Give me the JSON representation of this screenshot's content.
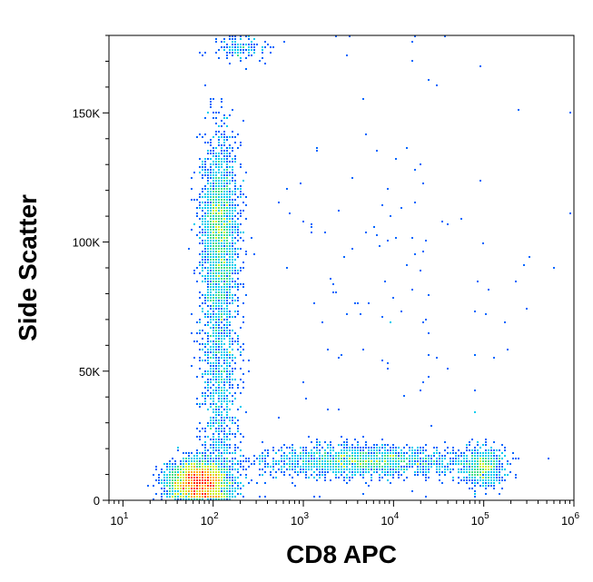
{
  "chart_data": {
    "type": "scatter",
    "subtype": "flow-cytometry density dot plot",
    "xlabel": "CD8 APC",
    "ylabel": "Side Scatter",
    "x_scale": "log",
    "x_range": [
      7,
      1000000
    ],
    "y_scale": "linear",
    "y_range": [
      0,
      180000
    ],
    "x_ticks": [
      {
        "value": 10,
        "base": "10",
        "exp": "1"
      },
      {
        "value": 100,
        "base": "10",
        "exp": "2"
      },
      {
        "value": 1000,
        "base": "10",
        "exp": "3"
      },
      {
        "value": 10000,
        "base": "10",
        "exp": "4"
      },
      {
        "value": 100000,
        "base": "10",
        "exp": "5"
      },
      {
        "value": 1000000,
        "base": "10",
        "exp": "6"
      }
    ],
    "y_ticks": [
      {
        "value": 0,
        "label": "0"
      },
      {
        "value": 50000,
        "label": "50K"
      },
      {
        "value": 100000,
        "label": "100K"
      },
      {
        "value": 150000,
        "label": "150K"
      }
    ],
    "color_scale": [
      "#0000cc",
      "#0066ff",
      "#00ccee",
      "#44dd88",
      "#ccee22",
      "#ffaa00",
      "#ff2200"
    ],
    "grid": false,
    "legend": "none",
    "populations": [
      {
        "x": 70,
        "y": 7000,
        "sx_log": 0.16,
        "sy": 4000,
        "n": 4000
      },
      {
        "x": 120,
        "y": 105000,
        "sx_log": 0.1,
        "sy": 18000,
        "n": 2200
      },
      {
        "x": 120,
        "y": 50000,
        "sx_log": 0.1,
        "sy": 30000,
        "n": 1400
      },
      {
        "x": 4000,
        "y": 15000,
        "sx_log": 0.55,
        "sy": 3000,
        "n": 1800
      },
      {
        "x": 100000,
        "y": 13000,
        "sx_log": 0.12,
        "sy": 3500,
        "n": 700
      },
      {
        "x": 200,
        "y": 175000,
        "sx_log": 0.15,
        "sy": 2500,
        "n": 150
      },
      {
        "x": 10000,
        "y": 80000,
        "sx_log": 0.9,
        "sy": 45000,
        "n": 140
      }
    ]
  }
}
